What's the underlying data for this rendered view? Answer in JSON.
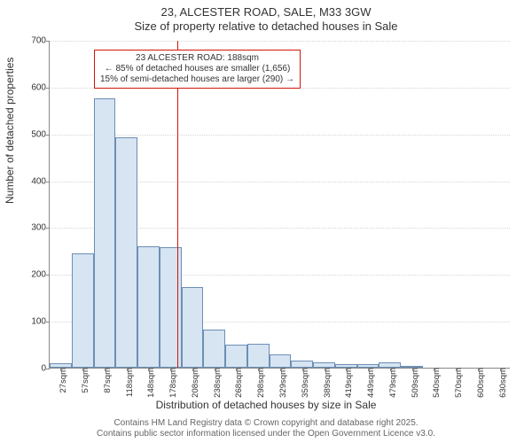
{
  "title_line1": "23, ALCESTER ROAD, SALE, M33 3GW",
  "title_line2": "Size of property relative to detached houses in Sale",
  "y_axis_label": "Number of detached properties",
  "x_axis_label": "Distribution of detached houses by size in Sale",
  "footer_line1": "Contains HM Land Registry data © Crown copyright and database right 2025.",
  "footer_line2": "Contains public sector information licensed under the Open Government Licence v3.0.",
  "chart": {
    "type": "histogram",
    "ylim": [
      0,
      700
    ],
    "ytick_step": 100,
    "categories": [
      "27sqm",
      "57sqm",
      "87sqm",
      "118sqm",
      "148sqm",
      "178sqm",
      "208sqm",
      "238sqm",
      "268sqm",
      "298sqm",
      "329sqm",
      "359sqm",
      "389sqm",
      "419sqm",
      "449sqm",
      "479sqm",
      "509sqm",
      "540sqm",
      "570sqm",
      "600sqm",
      "630sqm"
    ],
    "values": [
      10,
      245,
      575,
      492,
      260,
      258,
      172,
      82,
      50,
      52,
      28,
      15,
      12,
      8,
      8,
      12,
      2,
      0,
      0,
      0,
      0
    ],
    "bar_fill": "#d7e4f2",
    "bar_border": "#6b8fb5",
    "background": "#ffffff",
    "grid_color": "#d6d6d6",
    "axis_color": "#888888",
    "tick_fontsize": 10,
    "label_fontsize": 12,
    "reference_line": {
      "value_sqm": 188,
      "color": "#d11507",
      "width": 1
    },
    "annotation": {
      "line1": "23 ALCESTER ROAD: 188sqm",
      "line2": "← 85% of detached houses are smaller (1,656)",
      "line3": "15% of semi-detached houses are larger (290) →",
      "border_color": "#d11507",
      "border_width": 1,
      "background": "#ffffff",
      "fontsize": 10
    }
  }
}
